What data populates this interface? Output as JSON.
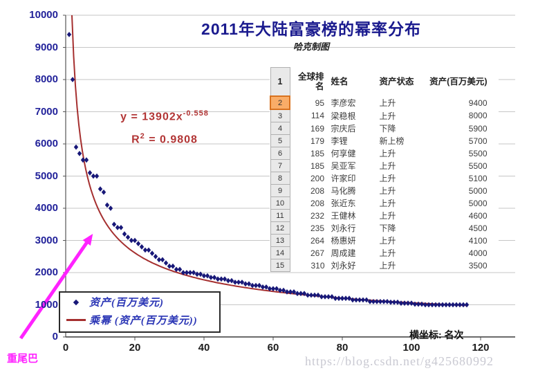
{
  "title": "2011年大陆富豪榜的幂率分布",
  "subtitle": "哈克制图",
  "equation": {
    "line1_base": "y = 13902x",
    "line1_sup": "-0.558",
    "line2_base": "R",
    "line2_sup": "2",
    "line2_rest": " = 0.9808"
  },
  "annotations": {
    "heavy_tail": "重尾巴",
    "x_axis_note": "横坐标: 名次",
    "watermark": "https://blog.csdn.net/g425680992"
  },
  "legend": [
    {
      "marker": "diamond",
      "label": "资产(百万美元)"
    },
    {
      "marker": "line",
      "label": "乘幂 (资产(百万美元))"
    }
  ],
  "table": {
    "headers": [
      "全球排名",
      "姓名",
      "资产状态",
      "资产(百万美元)"
    ],
    "row_numbers": [
      1,
      2,
      3,
      4,
      5,
      6,
      7,
      8,
      9,
      10,
      11,
      12,
      13,
      14,
      15
    ],
    "selected_row_number": 2,
    "rows": [
      [
        95,
        "李彦宏",
        "上升",
        9400
      ],
      [
        114,
        "梁稳根",
        "上升",
        8000
      ],
      [
        169,
        "宗庆后",
        "下降",
        5900
      ],
      [
        179,
        "李锂",
        "新上榜",
        5700
      ],
      [
        185,
        "何享健",
        "上升",
        5500
      ],
      [
        185,
        "吴亚军",
        "上升",
        5500
      ],
      [
        200,
        "许家印",
        "上升",
        5100
      ],
      [
        208,
        "马化腾",
        "上升",
        5000
      ],
      [
        208,
        "张近东",
        "上升",
        5000
      ],
      [
        232,
        "王健林",
        "上升",
        4600
      ],
      [
        235,
        "刘永行",
        "下降",
        4500
      ],
      [
        264,
        "杨惠妍",
        "上升",
        4100
      ],
      [
        267,
        "周成建",
        "上升",
        4000
      ],
      [
        310,
        "刘永好",
        "上升",
        3500
      ]
    ]
  },
  "chart_data": {
    "type": "scatter",
    "title": "2011年大陆富豪榜的幂率分布",
    "xlabel": "名次",
    "ylabel": "资产(百万美元)",
    "xlim": [
      0,
      130
    ],
    "ylim": [
      0,
      10000
    ],
    "x_ticks": [
      0,
      20,
      40,
      60,
      80,
      100,
      120
    ],
    "y_ticks": [
      0,
      1000,
      2000,
      3000,
      4000,
      5000,
      6000,
      7000,
      8000,
      9000,
      10000
    ],
    "grid": true,
    "legend_position": "bottom-left",
    "series": [
      {
        "name": "资产(百万美元)",
        "marker": "diamond",
        "x_is_rank": true,
        "values": [
          9400,
          8000,
          5900,
          5700,
          5500,
          5500,
          5100,
          5000,
          5000,
          4600,
          4500,
          4100,
          4000,
          3500,
          3400,
          3400,
          3200,
          3100,
          3000,
          3000,
          2900,
          2800,
          2700,
          2700,
          2600,
          2500,
          2400,
          2400,
          2300,
          2200,
          2200,
          2100,
          2100,
          2000,
          2000,
          2000,
          2000,
          1950,
          1950,
          1900,
          1900,
          1850,
          1850,
          1800,
          1800,
          1800,
          1750,
          1750,
          1700,
          1700,
          1700,
          1650,
          1650,
          1600,
          1600,
          1600,
          1550,
          1550,
          1500,
          1500,
          1500,
          1450,
          1450,
          1400,
          1400,
          1400,
          1350,
          1350,
          1350,
          1300,
          1300,
          1300,
          1300,
          1250,
          1250,
          1250,
          1250,
          1200,
          1200,
          1200,
          1200,
          1200,
          1150,
          1150,
          1150,
          1150,
          1150,
          1100,
          1100,
          1100,
          1100,
          1100,
          1100,
          1080,
          1080,
          1080,
          1050,
          1050,
          1050,
          1050,
          1020,
          1020,
          1020,
          1000,
          1000,
          1000,
          1000,
          1000,
          1000,
          1000,
          1000,
          1000,
          1000,
          1000,
          1000,
          1000
        ]
      }
    ],
    "trendline": {
      "name": "乘幂 (资产(百万美元))",
      "equation": "y = 13902x^-0.558",
      "r_squared": 0.9808,
      "a": 13902,
      "b": -0.558,
      "x_end": 116
    },
    "colors": {
      "point": "#181878",
      "line": "#a52f2f",
      "grid": "#c6c6c6",
      "axis": "#555555",
      "arrow": "#ff22ff",
      "title": "#1a1a8e",
      "equation": "#b23535",
      "highlight": "#f9ad68"
    }
  }
}
